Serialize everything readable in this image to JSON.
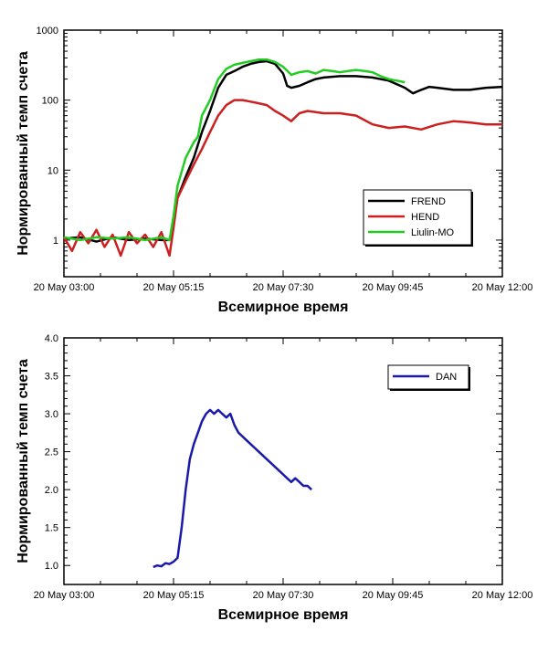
{
  "chart_data": [
    {
      "type": "line",
      "scale": "log",
      "xlabel": "Всемирное время",
      "ylabel": "Нормированный темп счета",
      "xlim": [
        180,
        720
      ],
      "ylim": [
        0.3,
        1000
      ],
      "x_ticks": [
        {
          "t": 180,
          "label": "20 May 03:00"
        },
        {
          "t": 315,
          "label": "20 May 05:15"
        },
        {
          "t": 450,
          "label": "20 May 07:30"
        },
        {
          "t": 585,
          "label": "20 May 09:45"
        },
        {
          "t": 720,
          "label": "20 May 12:00"
        }
      ],
      "y_ticks": [
        {
          "v": 1,
          "label": "1"
        },
        {
          "v": 10,
          "label": "10"
        },
        {
          "v": 100,
          "label": "100"
        },
        {
          "v": 1000,
          "label": "1000"
        }
      ],
      "legend_position": "bottom-right",
      "series": [
        {
          "name": "FREND",
          "color": "#000000",
          "points": [
            [
              180,
              1.05
            ],
            [
              200,
              1.1
            ],
            [
              220,
              0.95
            ],
            [
              240,
              1.1
            ],
            [
              260,
              1.0
            ],
            [
              280,
              1.05
            ],
            [
              300,
              1.0
            ],
            [
              310,
              1.0
            ],
            [
              315,
              1.8
            ],
            [
              320,
              4
            ],
            [
              330,
              8
            ],
            [
              340,
              15
            ],
            [
              350,
              35
            ],
            [
              360,
              70
            ],
            [
              370,
              150
            ],
            [
              380,
              230
            ],
            [
              390,
              260
            ],
            [
              400,
              300
            ],
            [
              410,
              330
            ],
            [
              420,
              350
            ],
            [
              430,
              360
            ],
            [
              440,
              330
            ],
            [
              450,
              240
            ],
            [
              455,
              160
            ],
            [
              460,
              150
            ],
            [
              470,
              160
            ],
            [
              480,
              180
            ],
            [
              490,
              200
            ],
            [
              500,
              210
            ],
            [
              520,
              220
            ],
            [
              540,
              220
            ],
            [
              560,
              210
            ],
            [
              580,
              190
            ],
            [
              600,
              150
            ],
            [
              610,
              125
            ],
            [
              620,
              140
            ],
            [
              630,
              155
            ],
            [
              640,
              150
            ],
            [
              660,
              140
            ],
            [
              680,
              140
            ],
            [
              700,
              150
            ],
            [
              720,
              155
            ]
          ]
        },
        {
          "name": "HEND",
          "color": "#cc2020",
          "points": [
            [
              180,
              1.1
            ],
            [
              190,
              0.7
            ],
            [
              200,
              1.3
            ],
            [
              210,
              0.9
            ],
            [
              220,
              1.4
            ],
            [
              230,
              0.8
            ],
            [
              240,
              1.2
            ],
            [
              250,
              0.6
            ],
            [
              260,
              1.3
            ],
            [
              270,
              0.9
            ],
            [
              280,
              1.2
            ],
            [
              290,
              0.8
            ],
            [
              300,
              1.3
            ],
            [
              310,
              0.6
            ],
            [
              315,
              1.5
            ],
            [
              320,
              4
            ],
            [
              330,
              7
            ],
            [
              340,
              12
            ],
            [
              350,
              20
            ],
            [
              360,
              35
            ],
            [
              370,
              60
            ],
            [
              380,
              85
            ],
            [
              390,
              100
            ],
            [
              400,
              100
            ],
            [
              410,
              95
            ],
            [
              420,
              90
            ],
            [
              430,
              85
            ],
            [
              440,
              70
            ],
            [
              450,
              60
            ],
            [
              460,
              50
            ],
            [
              470,
              65
            ],
            [
              480,
              70
            ],
            [
              500,
              65
            ],
            [
              520,
              65
            ],
            [
              540,
              60
            ],
            [
              560,
              45
            ],
            [
              580,
              40
            ],
            [
              600,
              42
            ],
            [
              620,
              38
            ],
            [
              640,
              45
            ],
            [
              660,
              50
            ],
            [
              680,
              48
            ],
            [
              700,
              45
            ],
            [
              720,
              45
            ]
          ]
        },
        {
          "name": "Liulin-MO",
          "color": "#22cc22",
          "points": [
            [
              180,
              1.1
            ],
            [
              200,
              1.0
            ],
            [
              220,
              1.1
            ],
            [
              240,
              1.05
            ],
            [
              260,
              1.1
            ],
            [
              280,
              1.0
            ],
            [
              300,
              1.1
            ],
            [
              310,
              1.0
            ],
            [
              315,
              2.2
            ],
            [
              320,
              6
            ],
            [
              330,
              15
            ],
            [
              340,
              25
            ],
            [
              345,
              30
            ],
            [
              350,
              60
            ],
            [
              360,
              100
            ],
            [
              370,
              200
            ],
            [
              380,
              280
            ],
            [
              390,
              320
            ],
            [
              400,
              340
            ],
            [
              410,
              360
            ],
            [
              420,
              380
            ],
            [
              430,
              380
            ],
            [
              440,
              350
            ],
            [
              450,
              300
            ],
            [
              460,
              230
            ],
            [
              470,
              250
            ],
            [
              480,
              260
            ],
            [
              490,
              240
            ],
            [
              500,
              270
            ],
            [
              510,
              260
            ],
            [
              520,
              250
            ],
            [
              530,
              260
            ],
            [
              540,
              270
            ],
            [
              550,
              260
            ],
            [
              560,
              250
            ],
            [
              570,
              220
            ],
            [
              580,
              200
            ],
            [
              590,
              190
            ],
            [
              600,
              180
            ]
          ]
        }
      ]
    },
    {
      "type": "line",
      "scale": "linear",
      "xlabel": "Всемирное время",
      "ylabel": "Нормированный темп счета",
      "xlim": [
        180,
        720
      ],
      "ylim": [
        0.75,
        4.0
      ],
      "x_ticks": [
        {
          "t": 180,
          "label": "20 May 03:00"
        },
        {
          "t": 315,
          "label": "20 May 05:15"
        },
        {
          "t": 450,
          "label": "20 May 07:30"
        },
        {
          "t": 585,
          "label": "20 May 09:45"
        },
        {
          "t": 720,
          "label": "20 May 12:00"
        }
      ],
      "y_ticks": [
        {
          "v": 1.0,
          "label": "1.0"
        },
        {
          "v": 1.5,
          "label": "1.5"
        },
        {
          "v": 2.0,
          "label": "2.0"
        },
        {
          "v": 2.5,
          "label": "2.5"
        },
        {
          "v": 3.0,
          "label": "3.0"
        },
        {
          "v": 3.5,
          "label": "3.5"
        },
        {
          "v": 4.0,
          "label": "4.0"
        }
      ],
      "legend_position": "top-right",
      "series": [
        {
          "name": "DAN",
          "color": "#1a1aaa",
          "points": [
            [
              290,
              0.98
            ],
            [
              295,
              1.0
            ],
            [
              300,
              0.99
            ],
            [
              305,
              1.03
            ],
            [
              310,
              1.02
            ],
            [
              315,
              1.05
            ],
            [
              320,
              1.1
            ],
            [
              325,
              1.5
            ],
            [
              330,
              2.0
            ],
            [
              335,
              2.4
            ],
            [
              340,
              2.6
            ],
            [
              345,
              2.75
            ],
            [
              350,
              2.9
            ],
            [
              355,
              3.0
            ],
            [
              360,
              3.05
            ],
            [
              365,
              3.0
            ],
            [
              370,
              3.05
            ],
            [
              375,
              3.0
            ],
            [
              380,
              2.95
            ],
            [
              385,
              3.0
            ],
            [
              390,
              2.85
            ],
            [
              395,
              2.75
            ],
            [
              400,
              2.7
            ],
            [
              405,
              2.65
            ],
            [
              410,
              2.6
            ],
            [
              415,
              2.55
            ],
            [
              420,
              2.5
            ],
            [
              425,
              2.45
            ],
            [
              430,
              2.4
            ],
            [
              435,
              2.35
            ],
            [
              440,
              2.3
            ],
            [
              445,
              2.25
            ],
            [
              450,
              2.2
            ],
            [
              455,
              2.15
            ],
            [
              460,
              2.1
            ],
            [
              465,
              2.15
            ],
            [
              470,
              2.1
            ],
            [
              475,
              2.05
            ],
            [
              480,
              2.05
            ],
            [
              485,
              2.0
            ]
          ]
        }
      ]
    }
  ]
}
